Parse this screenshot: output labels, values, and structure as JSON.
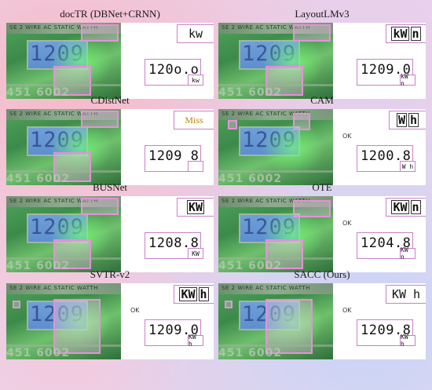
{
  "panels": [
    {
      "id": "doctr",
      "title": "docTR (DBNet+CRNN)",
      "unit_top": "kw",
      "unit_style": "plain",
      "reading": "120o.o",
      "small_unit": "kw",
      "ok": ""
    },
    {
      "id": "layoutlmv3",
      "title": "LayoutLMv3",
      "unit_top": "kW n",
      "unit_style": "boxed",
      "reading": "1209.0",
      "small_unit": "kW n",
      "ok": ""
    },
    {
      "id": "cdistnet",
      "title": "CDistNet",
      "unit_top": "Miss",
      "unit_style": "miss",
      "reading": "1209 8",
      "small_unit": "",
      "ok": ""
    },
    {
      "id": "cam",
      "title": "CAM",
      "unit_top": "W h",
      "unit_style": "boxed",
      "reading": "1200.8",
      "small_unit": "W h",
      "ok": "OK"
    },
    {
      "id": "busnet",
      "title": "BUSNet",
      "unit_top": "KW",
      "unit_style": "boxed",
      "reading": "1208.8",
      "small_unit": "KW",
      "ok": ""
    },
    {
      "id": "ote",
      "title": "OTE",
      "unit_top": "KW n",
      "unit_style": "boxed",
      "reading": "1204.8",
      "small_unit": "KW n",
      "ok": "OK"
    },
    {
      "id": "svtrv2",
      "title": "SVTR-v2",
      "unit_top": "KW h",
      "unit_style": "boxed",
      "reading": "1209.0",
      "small_unit": "KW h",
      "ok": "OK"
    },
    {
      "id": "sacc",
      "title": "SACC (Ours)",
      "unit_top": "KW h",
      "unit_style": "plain",
      "reading": "1209.8",
      "small_unit": "KW h",
      "ok": "OK"
    }
  ],
  "photo": {
    "strip_text": "SE 2 WIRE AC STATIC WATTH",
    "lcd_digits": "1209",
    "serial": "451 6002"
  },
  "colors": {
    "highlight": "#e890d8",
    "box_border": "#c880c8",
    "miss": "#b8860b"
  }
}
